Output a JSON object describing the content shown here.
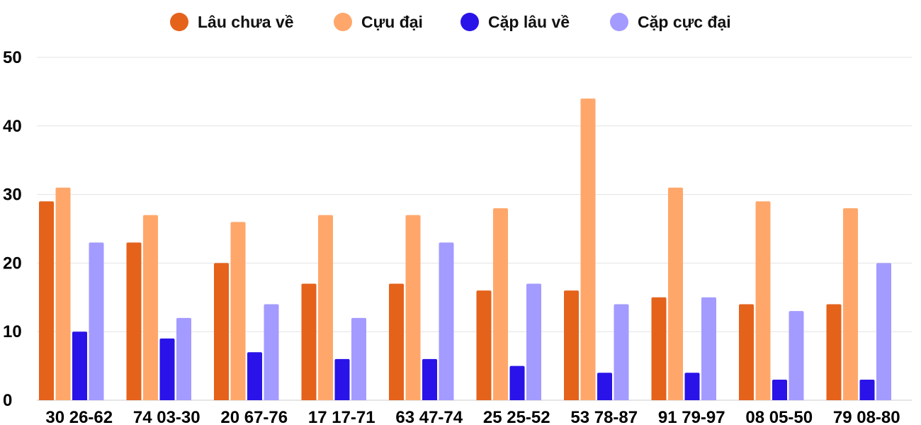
{
  "chart_data": {
    "type": "bar",
    "categories": [
      "30 26-62",
      "74 03-30",
      "20 67-76",
      "17 17-71",
      "63 47-74",
      "25 25-52",
      "53 78-87",
      "91 79-97",
      "08 05-50",
      "79 08-80"
    ],
    "series": [
      {
        "name": "Lâu chưa về",
        "color": "#E5621B",
        "values": [
          29,
          23,
          20,
          17,
          17,
          16,
          16,
          15,
          14,
          14
        ]
      },
      {
        "name": "Cựu đại",
        "color": "#FFA76A",
        "values": [
          31,
          27,
          26,
          27,
          27,
          28,
          44,
          31,
          29,
          28
        ]
      },
      {
        "name": "Cặp lâu về",
        "color": "#2A13E8",
        "values": [
          10,
          9,
          7,
          6,
          6,
          5,
          4,
          4,
          3,
          3
        ]
      },
      {
        "name": "Cặp cực đại",
        "color": "#A39BFF",
        "values": [
          23,
          12,
          14,
          12,
          23,
          17,
          14,
          15,
          13,
          20
        ]
      }
    ],
    "ylim": [
      0,
      50
    ],
    "yticks": [
      "0",
      "10",
      "20",
      "30",
      "40",
      "50"
    ],
    "grid": true,
    "legend_position": "top-center",
    "title": "",
    "xlabel": "",
    "ylabel": ""
  }
}
